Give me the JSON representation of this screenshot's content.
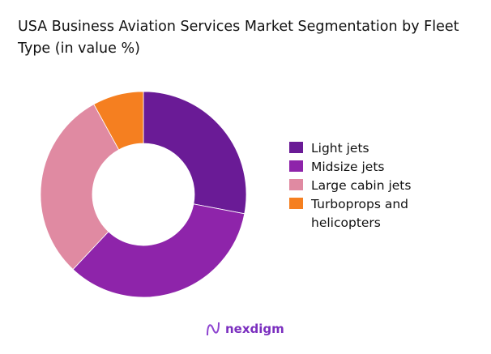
{
  "chart_data": {
    "type": "pie",
    "donut": true,
    "title": "USA Business Aviation Services Market Segmentation by Fleet Type (in value %)",
    "categories": [
      "Light jets",
      "Midsize jets",
      "Large cabin jets",
      "Turboprops and helicopters"
    ],
    "values": [
      28,
      34,
      30,
      8
    ],
    "colors": [
      "#6a1b96",
      "#8e24aa",
      "#e08aa2",
      "#f57f20"
    ],
    "legend_position": "right"
  },
  "brand": {
    "name": "nexdigm"
  }
}
